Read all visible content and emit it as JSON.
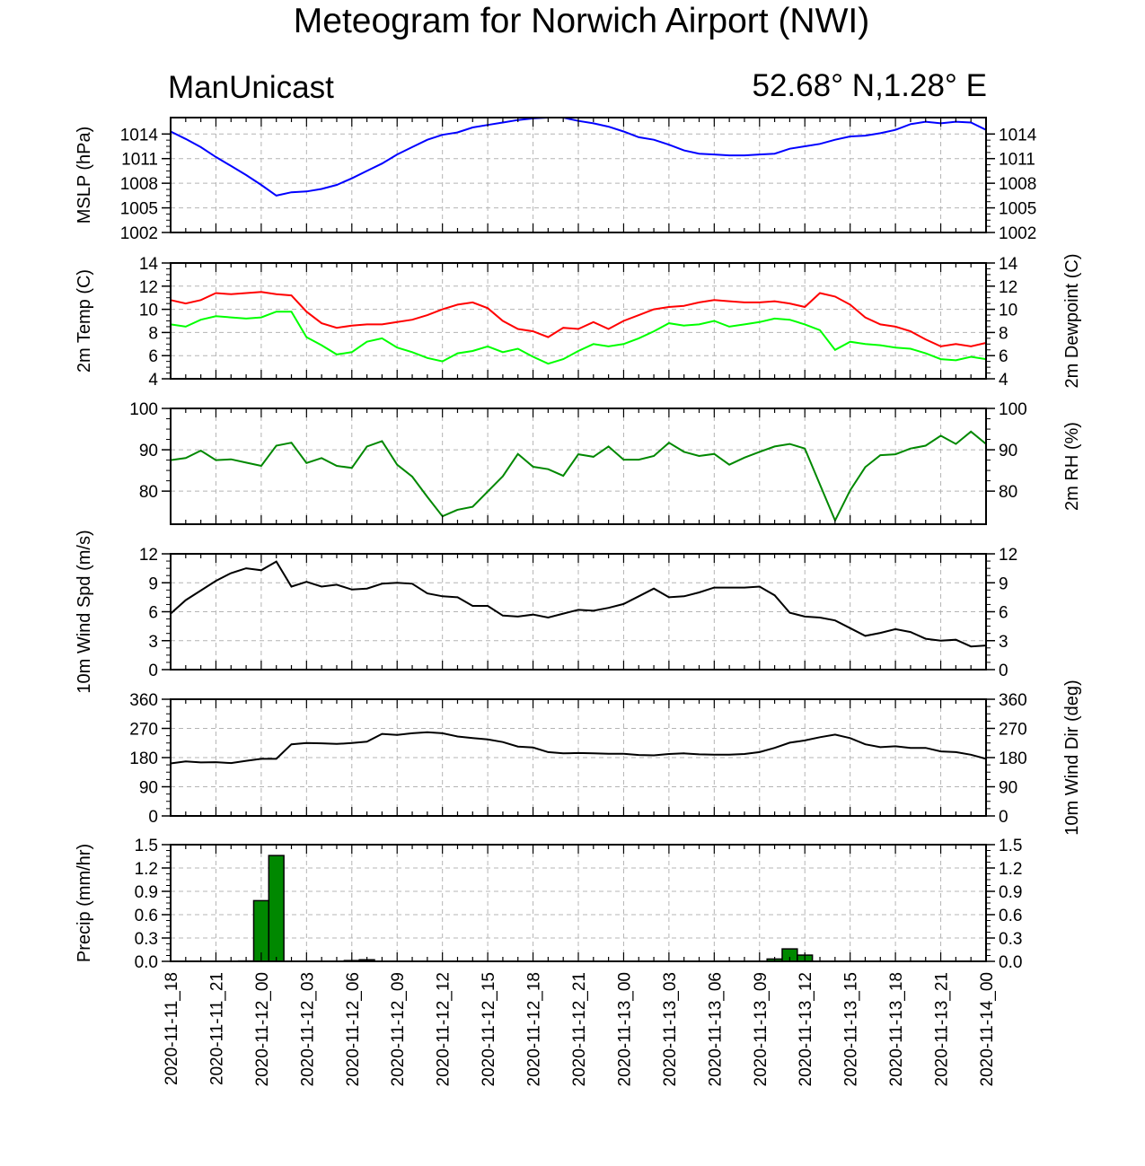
{
  "title": "Meteogram for Norwich Airport (NWI)",
  "model": "ManUnicast",
  "location": "52.68° N,1.28° E",
  "chart_data": {
    "type": "meteogram",
    "x_labels": [
      "2020-11-11_18",
      "2020-11-11_21",
      "2020-11-12_00",
      "2020-11-12_03",
      "2020-11-12_06",
      "2020-11-12_09",
      "2020-11-12_12",
      "2020-11-12_15",
      "2020-11-12_18",
      "2020-11-12_21",
      "2020-11-13_00",
      "2020-11-13_03",
      "2020-11-13_06",
      "2020-11-13_09",
      "2020-11-13_12",
      "2020-11-13_15",
      "2020-11-13_18",
      "2020-11-13_21",
      "2020-11-14_00"
    ],
    "hours_per_step": 1,
    "grid": true,
    "colors": {
      "mslp": "#0000ff",
      "temp": "#ff0000",
      "dewpoint": "#00ff00",
      "rh": "#008800",
      "wind_speed": "#000000",
      "wind_dir": "#000000",
      "precip": "#008800"
    },
    "panels": [
      {
        "id": "mslp",
        "type": "line",
        "left_label": "MSLP (hPa)",
        "right_label": "",
        "ylim": [
          1002,
          1016
        ],
        "ticks": [
          1002,
          1005,
          1008,
          1011,
          1014
        ],
        "series": [
          {
            "color": "#0000ff",
            "values": [
              1014.3,
              1013.4,
              1012.4,
              1011.2,
              1010.1,
              1009.0,
              1007.8,
              1006.5,
              1006.9,
              1007.0,
              1007.3,
              1007.8,
              1008.6,
              1009.5,
              1010.4,
              1011.5,
              1012.4,
              1013.3,
              1013.9,
              1014.2,
              1014.8,
              1015.1,
              1015.4,
              1015.7,
              1015.9,
              1016.0,
              1016.0,
              1015.6,
              1015.3,
              1014.9,
              1014.3,
              1013.6,
              1013.3,
              1012.7,
              1012.0,
              1011.6,
              1011.5,
              1011.4,
              1011.4,
              1011.5,
              1011.6,
              1012.2,
              1012.5,
              1012.8,
              1013.3,
              1013.7,
              1013.8,
              1014.1,
              1014.5,
              1015.2,
              1015.5,
              1015.3,
              1015.5,
              1015.4,
              1014.5
            ]
          }
        ]
      },
      {
        "id": "temp",
        "type": "line",
        "left_label": "2m Temp (C)",
        "right_label": "2m Dewpoint (C)",
        "ylim": [
          4,
          14
        ],
        "ticks": [
          4,
          6,
          8,
          10,
          12,
          14
        ],
        "series": [
          {
            "color": "#ff0000",
            "values": [
              10.8,
              10.5,
              10.8,
              11.4,
              11.3,
              11.4,
              11.5,
              11.3,
              11.2,
              9.8,
              8.8,
              8.4,
              8.6,
              8.7,
              8.7,
              8.9,
              9.1,
              9.5,
              10.0,
              10.4,
              10.6,
              10.1,
              9.0,
              8.3,
              8.1,
              7.6,
              8.4,
              8.3,
              8.9,
              8.3,
              9.0,
              9.5,
              10.0,
              10.2,
              10.3,
              10.6,
              10.8,
              10.7,
              10.6,
              10.6,
              10.7,
              10.5,
              10.2,
              11.4,
              11.1,
              10.4,
              9.3,
              8.7,
              8.5,
              8.1,
              7.4,
              6.8,
              7.0,
              6.8,
              7.1
            ]
          },
          {
            "color": "#00ff00",
            "values": [
              8.7,
              8.5,
              9.1,
              9.4,
              9.3,
              9.2,
              9.3,
              9.8,
              9.8,
              7.6,
              6.9,
              6.1,
              6.3,
              7.2,
              7.5,
              6.7,
              6.3,
              5.8,
              5.5,
              6.2,
              6.4,
              6.8,
              6.3,
              6.6,
              5.9,
              5.3,
              5.7,
              6.4,
              7.0,
              6.8,
              7.0,
              7.5,
              8.1,
              8.8,
              8.6,
              8.7,
              9.0,
              8.5,
              8.7,
              8.9,
              9.2,
              9.1,
              8.7,
              8.2,
              6.5,
              7.2,
              7.0,
              6.9,
              6.7,
              6.6,
              6.2,
              5.7,
              5.6,
              5.9,
              5.7
            ]
          }
        ]
      },
      {
        "id": "rh",
        "type": "line",
        "left_label": "",
        "right_label": "2m RH (%)",
        "ylim": [
          72,
          100
        ],
        "ticks": [
          80,
          90,
          100
        ],
        "series": [
          {
            "color": "#008800",
            "values": [
              87.5,
              88.0,
              89.8,
              87.5,
              87.7,
              86.9,
              86.1,
              91.0,
              91.7,
              86.8,
              88.0,
              86.1,
              85.6,
              90.8,
              92.1,
              86.4,
              83.5,
              78.6,
              73.9,
              75.5,
              76.2,
              79.9,
              83.6,
              89.0,
              85.9,
              85.3,
              83.7,
              88.9,
              88.3,
              90.8,
              87.6,
              87.6,
              88.5,
              91.7,
              89.5,
              88.5,
              89.0,
              86.4,
              88.1,
              89.5,
              90.8,
              91.4,
              90.3,
              81.6,
              72.9,
              80.2,
              85.8,
              88.7,
              88.9,
              90.3,
              91.0,
              93.4,
              91.4,
              94.4,
              91.4
            ]
          }
        ]
      },
      {
        "id": "wspd",
        "type": "line",
        "left_label": "10m Wind Spd (m/s)",
        "right_label": "",
        "ylim": [
          0,
          12
        ],
        "ticks": [
          0,
          3,
          6,
          9,
          12
        ],
        "series": [
          {
            "color": "#000000",
            "values": [
              5.8,
              7.2,
              8.2,
              9.2,
              10.0,
              10.5,
              10.3,
              11.2,
              8.6,
              9.1,
              8.6,
              8.8,
              8.3,
              8.4,
              8.9,
              9.0,
              8.9,
              7.9,
              7.6,
              7.5,
              6.6,
              6.6,
              5.6,
              5.5,
              5.7,
              5.4,
              5.8,
              6.2,
              6.1,
              6.4,
              6.8,
              7.6,
              8.4,
              7.5,
              7.6,
              8.0,
              8.5,
              8.5,
              8.5,
              8.6,
              7.7,
              5.9,
              5.5,
              5.4,
              5.1,
              4.3,
              3.5,
              3.8,
              4.2,
              3.9,
              3.2,
              3.0,
              3.1,
              2.4,
              2.5
            ]
          }
        ]
      },
      {
        "id": "wdir",
        "type": "line",
        "left_label": "",
        "right_label": "10m Wind Dir (deg)",
        "ylim": [
          0,
          360
        ],
        "ticks": [
          0,
          90,
          180,
          270,
          360
        ],
        "series": [
          {
            "color": "#000000",
            "values": [
              162,
              168,
              165,
              166,
              163,
              170,
              176,
              176,
              221,
              225,
              224,
              222,
              225,
              229,
              253,
              250,
              255,
              258,
              255,
              245,
              240,
              236,
              228,
              214,
              211,
              197,
              193,
              194,
              193,
              192,
              192,
              188,
              187,
              191,
              193,
              190,
              189,
              189,
              191,
              197,
              210,
              226,
              233,
              243,
              251,
              240,
              221,
              212,
              215,
              210,
              210,
              199,
              197,
              189,
              176
            ]
          }
        ]
      },
      {
        "id": "precip",
        "type": "bar",
        "left_label": "Precip (mm/hr)",
        "right_label": "",
        "ylim": [
          0,
          1.5
        ],
        "ticks": [
          0.0,
          0.3,
          0.6,
          0.9,
          1.2,
          1.5
        ],
        "tick_labels": [
          "0.0",
          "0.3",
          "0.6",
          "0.9",
          "1.2",
          "1.5"
        ],
        "bar_color": "#008800",
        "values": [
          0,
          0,
          0,
          0,
          0,
          0.005,
          0.78,
          1.36,
          0,
          0,
          0,
          0,
          0.01,
          0.02,
          0,
          0,
          0,
          0,
          0,
          0,
          0,
          0,
          0,
          0,
          0,
          0,
          0,
          0,
          0,
          0,
          0,
          0,
          0,
          0,
          0,
          0,
          0,
          0,
          0,
          0,
          0.03,
          0.16,
          0.08,
          0,
          0,
          0,
          0,
          0,
          0,
          0,
          0,
          0,
          0,
          0,
          0
        ]
      }
    ]
  }
}
